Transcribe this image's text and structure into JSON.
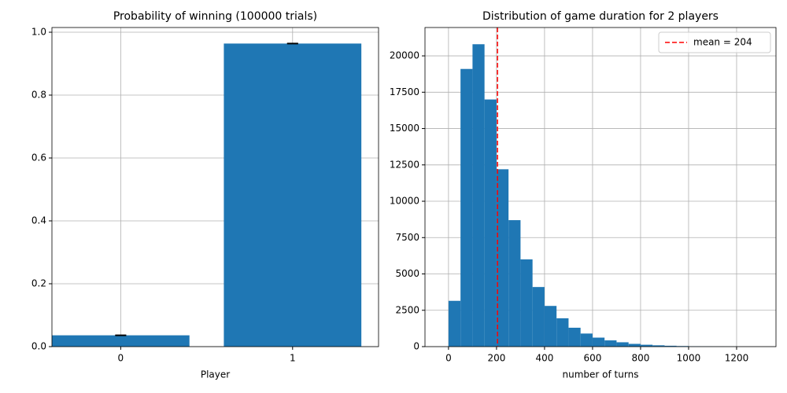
{
  "chart_data": [
    {
      "type": "bar",
      "title": "Probability of winning (100000 trials)",
      "x_label": "Player",
      "categories": [
        "0",
        "1"
      ],
      "values": [
        0.036,
        0.964
      ],
      "errors": [
        0.0006,
        0.0006
      ],
      "color": "#1f77b4",
      "error_color": "#000000",
      "ylim": [
        0,
        1.015
      ],
      "yticks": [
        {
          "value": 0,
          "label": "0.0"
        },
        0.2,
        0.4,
        0.6,
        0.8,
        {
          "value": 1,
          "label": "1.0"
        }
      ],
      "grid": true
    },
    {
      "type": "histogram",
      "title": "Distribution of game duration for 2 players",
      "x_label": "number of turns",
      "bins": [
        0,
        50,
        100,
        150,
        200,
        250,
        300,
        350,
        400,
        450,
        500,
        550,
        600,
        650,
        700,
        750,
        800,
        850,
        900,
        950,
        1000,
        1050,
        1100,
        1150,
        1200,
        1250,
        1300
      ],
      "counts": [
        3150,
        19100,
        20800,
        17000,
        12200,
        8700,
        6000,
        4100,
        2800,
        1950,
        1300,
        900,
        620,
        430,
        300,
        190,
        130,
        90,
        60,
        40,
        25,
        15,
        10,
        5,
        3,
        2
      ],
      "color": "#1f77b4",
      "mean": {
        "value": 204,
        "label": "mean = 204",
        "color": "#ff0000"
      },
      "legend": "upper right",
      "xlim": [
        -98,
        1364
      ],
      "xticks": [
        0,
        200,
        400,
        600,
        800,
        1000,
        1200
      ],
      "ylim": [
        0,
        21950
      ],
      "yticks": [
        0,
        2500,
        5000,
        7500,
        10000,
        12500,
        15000,
        17500,
        20000
      ],
      "grid": true
    }
  ]
}
